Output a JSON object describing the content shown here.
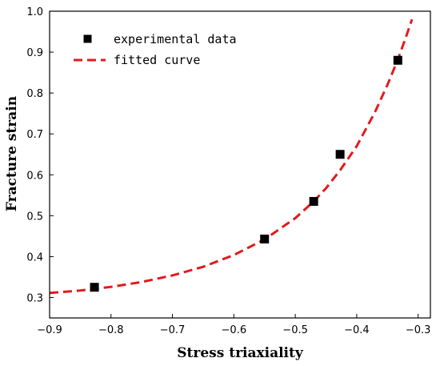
{
  "chart_data": {
    "type": "scatter",
    "title": "",
    "xlabel": "Stress triaxiality",
    "ylabel": "Fracture strain",
    "xlim": [
      -0.9,
      -0.28
    ],
    "ylim": [
      0.25,
      1.0
    ],
    "xticks": [
      -0.9,
      -0.8,
      -0.7,
      -0.6,
      -0.5,
      -0.4,
      -0.3
    ],
    "xtick_labels": [
      "−0.9",
      "−0.8",
      "−0.7",
      "−0.6",
      "−0.5",
      "−0.4",
      "−0.3"
    ],
    "yticks": [
      0.3,
      0.4,
      0.5,
      0.6,
      0.7,
      0.8,
      0.9,
      1.0
    ],
    "ytick_labels": [
      "0.3",
      "0.4",
      "0.5",
      "0.6",
      "0.7",
      "0.8",
      "0.9",
      "1.0"
    ],
    "grid": false,
    "legend_position": "top-left",
    "series": [
      {
        "name": "experimental data",
        "kind": "scatter",
        "marker": "square",
        "color": "#000000",
        "x": [
          -0.827,
          -0.55,
          -0.47,
          -0.427,
          -0.333
        ],
        "y": [
          0.325,
          0.443,
          0.535,
          0.65,
          0.88
        ]
      },
      {
        "name": "fitted curve",
        "kind": "line",
        "style": "dashed",
        "color": "#e31a1c",
        "x": [
          -0.9,
          -0.85,
          -0.8,
          -0.75,
          -0.7,
          -0.65,
          -0.6,
          -0.55,
          -0.5,
          -0.47,
          -0.45,
          -0.427,
          -0.4,
          -0.37,
          -0.35,
          -0.333,
          -0.32,
          -0.31
        ],
        "y": [
          0.311,
          0.317,
          0.326,
          0.338,
          0.354,
          0.375,
          0.404,
          0.442,
          0.494,
          0.535,
          0.567,
          0.611,
          0.67,
          0.754,
          0.82,
          0.882,
          0.936,
          0.98
        ]
      }
    ]
  }
}
